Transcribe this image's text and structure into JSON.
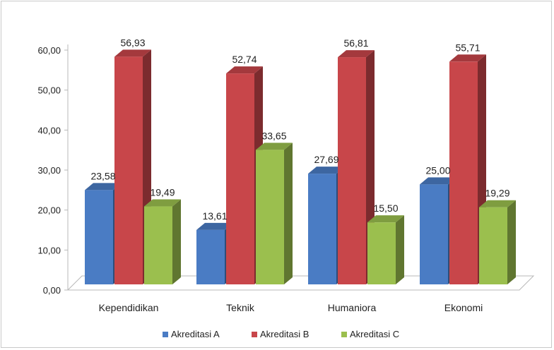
{
  "chart_data": {
    "type": "bar",
    "categories": [
      "Kependidikan",
      "Teknik",
      "Humaniora",
      "Ekonomi"
    ],
    "series": [
      {
        "name": "Akreditasi A",
        "values": [
          23.58,
          13.61,
          27.69,
          25.0
        ],
        "labels": [
          "23,58",
          "13,61",
          "27,69",
          "25,00"
        ],
        "color": "#4a7cc4"
      },
      {
        "name": "Akreditasi B",
        "values": [
          56.93,
          52.74,
          56.81,
          55.71
        ],
        "labels": [
          "56,93",
          "52,74",
          "56,81",
          "55,71"
        ],
        "color": "#c8464a"
      },
      {
        "name": "Akreditasi C",
        "values": [
          19.49,
          33.65,
          15.5,
          19.29
        ],
        "labels": [
          "19,49",
          "33,65",
          "15,50",
          "19,29"
        ],
        "color": "#9bbf4e"
      }
    ],
    "y_ticks": [
      "0,00",
      "10,00",
      "20,00",
      "30,00",
      "40,00",
      "50,00",
      "60,00"
    ],
    "ylim": [
      0,
      60
    ],
    "legend_position": "bottom",
    "grid": false,
    "style": "3d-column"
  }
}
